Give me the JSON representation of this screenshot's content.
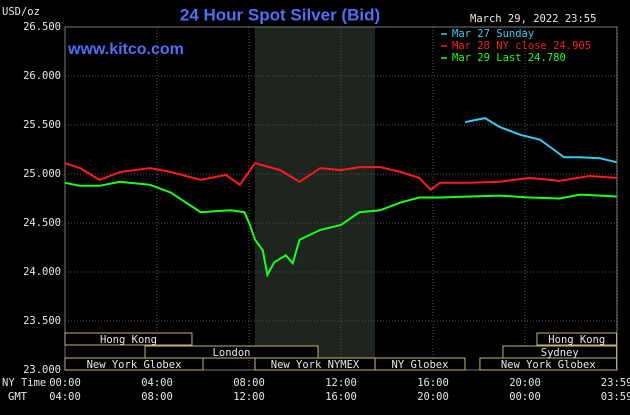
{
  "chart_data": {
    "type": "line",
    "title": "24 Hour Spot Silver (Bid)",
    "website": "www.kitco.com",
    "timestamp": "March 29, 2022 23:55",
    "y_label": "USD/oz",
    "x_label": "NY Time",
    "x2_label": "GMT",
    "xlim": [
      0,
      24
    ],
    "xticks": [
      {
        "value": 0,
        "label": "00:00"
      },
      {
        "value": 4,
        "label": "04:00"
      },
      {
        "value": 8,
        "label": "08:00"
      },
      {
        "value": 12,
        "label": "12:00"
      },
      {
        "value": 16,
        "label": "16:00"
      },
      {
        "value": 20,
        "label": "20:00"
      },
      {
        "value": 23.983,
        "label": "23:59"
      }
    ],
    "x2ticks": [
      "04:00",
      "08:00",
      "12:00",
      "16:00",
      "20:00",
      "00:00",
      "03:59"
    ],
    "ylim": [
      23,
      26.5
    ],
    "yticks": [
      {
        "value": 23,
        "label": "23.000"
      },
      {
        "value": 23.5,
        "label": "23.500"
      },
      {
        "value": 24,
        "label": "24.000"
      },
      {
        "value": 24.5,
        "label": "24.500"
      },
      {
        "value": 25,
        "label": "25.000"
      },
      {
        "value": 25.5,
        "label": "25.500"
      },
      {
        "value": 26,
        "label": "26.000"
      },
      {
        "value": 26.5,
        "label": "26.500"
      }
    ],
    "grid": true,
    "series": [
      {
        "name": "Mar 27 Sunday",
        "color": "#33ccf5",
        "x": [
          17.4,
          18.26,
          18.9,
          19.8,
          20.65,
          21.3,
          21.7,
          22.4,
          23.26,
          23.98
        ],
        "values": [
          25.53,
          25.57,
          25.48,
          25.4,
          25.35,
          25.24,
          25.17,
          25.17,
          25.16,
          25.12
        ]
      },
      {
        "name": "Mar 28 NY close 24.905",
        "color": "#ff1a1a",
        "x": [
          0,
          0.65,
          1.5,
          2.4,
          3.7,
          4.6,
          5.9,
          7,
          7.6,
          8.26,
          9.35,
          10.2,
          11.1,
          12,
          12.8,
          13.7,
          14.6,
          15.4,
          15.9,
          16.3,
          17.6,
          18.9,
          20.2,
          21.5,
          22.8,
          23.98
        ],
        "values": [
          25.11,
          25.06,
          24.94,
          25.02,
          25.06,
          25.02,
          24.94,
          24.99,
          24.89,
          25.11,
          25.04,
          24.92,
          25.06,
          25.04,
          25.07,
          25.07,
          25.02,
          24.96,
          24.84,
          24.91,
          24.91,
          24.92,
          24.96,
          24.93,
          24.98,
          24.96
        ]
      },
      {
        "name": "Mar 29 Last 24.780",
        "color": "#1aff1a",
        "x": [
          0,
          0.65,
          1.5,
          2.4,
          3.7,
          4.6,
          5.9,
          7.2,
          7.8,
          8.04,
          8.26,
          8.6,
          8.8,
          9.1,
          9.6,
          9.9,
          10.2,
          11.1,
          12,
          12.8,
          13.7,
          14.6,
          15.4,
          16.3,
          17.6,
          18.9,
          20.2,
          21.5,
          22.4,
          23.26,
          23.98
        ],
        "values": [
          24.91,
          24.88,
          24.88,
          24.92,
          24.89,
          24.81,
          24.61,
          24.63,
          24.61,
          24.48,
          24.33,
          24.22,
          23.97,
          24.1,
          24.17,
          24.09,
          24.33,
          24.43,
          24.48,
          24.61,
          24.63,
          24.71,
          24.76,
          24.76,
          24.77,
          24.78,
          24.76,
          24.75,
          24.79,
          24.78,
          24.77
        ]
      }
    ],
    "sessions": [
      {
        "label": "Hong Kong",
        "start": 0,
        "end": 5.52
      },
      {
        "label": "London",
        "start": 3.48,
        "end": 11
      },
      {
        "label": "New York Globex",
        "start": 0,
        "end": 6
      },
      {
        "label": "New York NYMEX",
        "start": 8.26,
        "end": 13.48
      },
      {
        "label": "NY Globex",
        "start": 13.48,
        "end": 17.39
      },
      {
        "label": "New York Globex",
        "start": 18.04,
        "end": 23.98
      },
      {
        "label": "Sydney",
        "start": 19.04,
        "end": 23.98
      },
      {
        "label": "Hong Kong",
        "start": 20.52,
        "end": 23.98
      }
    ]
  }
}
